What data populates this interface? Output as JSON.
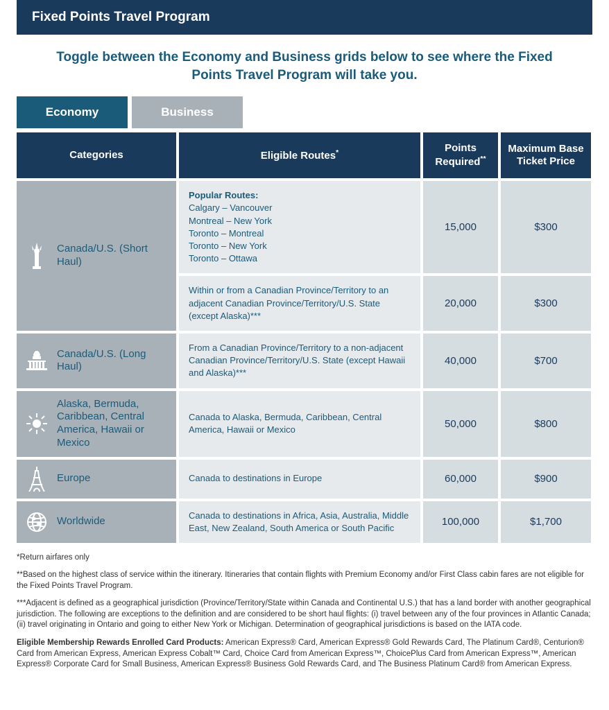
{
  "title": "Fixed Points Travel Program",
  "subtitle": "Toggle between the Economy and Business grids below to see where the Fixed Points Travel Program will take you.",
  "tabs": {
    "economy": "Economy",
    "business": "Business"
  },
  "headers": {
    "categories": "Categories",
    "routes": "Eligible Routes",
    "routes_sup": "*",
    "points": "Points Required",
    "points_sup": "**",
    "price": "Maximum Base Ticket Price"
  },
  "sections": [
    {
      "icon": "liberty",
      "category": "Canada/U.S. (Short Haul)",
      "rows": [
        {
          "popular_label": "Popular Routes:",
          "routes_list": "Calgary – Vancouver\nMontreal – New York\nToronto – Montreal\nToronto – New York\nToronto – Ottawa",
          "points": "15,000",
          "price": "$300"
        },
        {
          "route_text": "Within or from a Canadian Province/Territory to an adjacent Canadian Province/Territory/U.S. State (except Alaska)***",
          "points": "20,000",
          "price": "$300"
        }
      ]
    },
    {
      "icon": "capitol",
      "category": "Canada/U.S. (Long Haul)",
      "rows": [
        {
          "route_text": "From a Canadian Province/Territory to a non-adjacent Canadian Province/Territory/U.S. State (except Hawaii and Alaska)***",
          "points": "40,000",
          "price": "$700"
        }
      ]
    },
    {
      "icon": "sun",
      "category": "Alaska, Bermuda, Caribbean, Central America, Hawaii or Mexico",
      "rows": [
        {
          "route_text": "Canada to Alaska, Bermuda, Caribbean, Central America, Hawaii or Mexico",
          "points": "50,000",
          "price": "$800"
        }
      ]
    },
    {
      "icon": "eiffel",
      "category": "Europe",
      "rows": [
        {
          "route_text": "Canada to destinations in Europe",
          "points": "60,000",
          "price": "$900"
        }
      ]
    },
    {
      "icon": "globe",
      "category": "Worldwide",
      "rows": [
        {
          "route_text": "Canada to destinations in Africa, Asia, Australia, Middle East, New Zealand, South America or South Pacific",
          "points": "100,000",
          "price": "$1,700"
        }
      ]
    }
  ],
  "footnotes": {
    "f1": "*Return airfares only",
    "f2": "**Based on the highest class of service within the itinerary. Itineraries that contain flights with Premium Economy and/or First Class cabin fares are not eligible for the Fixed Points Travel Program.",
    "f3": "***Adjacent is defined as a geographical jurisdiction (Province/Territory/State within Canada and Continental U.S.) that has a land border with another geographical jurisdiction. The following are exceptions to the definition and are considered to be short haul flights: (i) travel between any of the four provinces in Atlantic Canada; (ii) travel originating in Ontario and going to either New York or Michigan. Determination of geographical jurisdictions is based on the IATA code.",
    "f4_bold": "Eligible Membership Rewards Enrolled Card Products:",
    "f4_rest": " American Express® Card, American Express® Gold Rewards Card, The Platinum Card®, Centurion® Card from American Express, American Express Cobalt™ Card, Choice Card from American Express™, ChoicePlus Card from American Express™, American Express® Corporate Card for Small Business, American Express® Business Gold Rewards Card, and The Business Platinum Card® from American Express."
  },
  "colors": {
    "dark_navy": "#1a3a5c",
    "teal": "#1a5b7a",
    "grey": "#a9b1b8",
    "light_blue_grey": "#e6eaec",
    "mid_blue_grey": "#d6dde0"
  }
}
